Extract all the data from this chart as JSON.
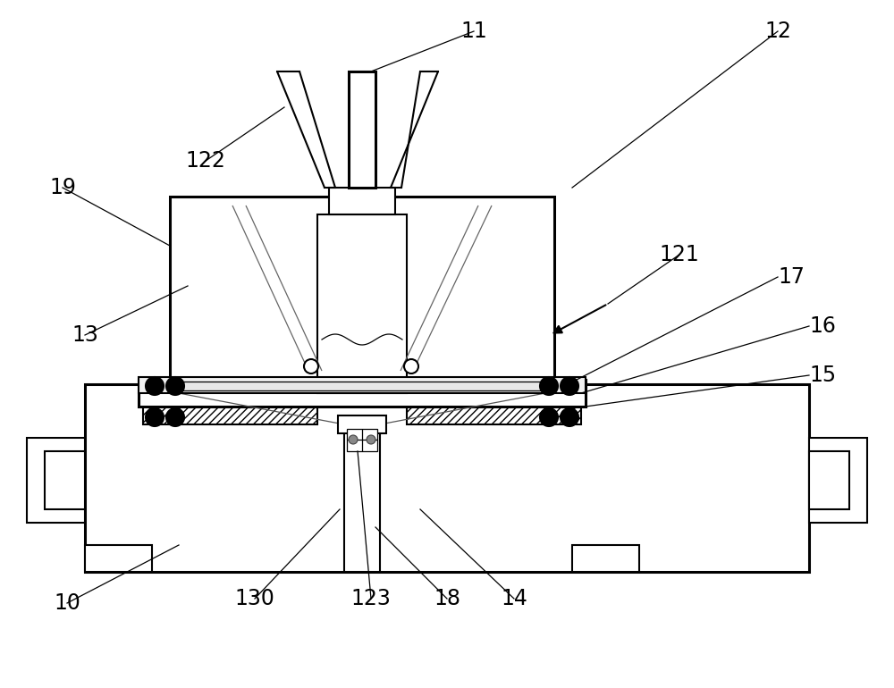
{
  "bg_color": "#ffffff",
  "lc": "#000000",
  "lw_heavy": 2.2,
  "lw_med": 1.5,
  "lw_thin": 0.9,
  "fontsize": 17,
  "arrow_label_lw": 0.9
}
